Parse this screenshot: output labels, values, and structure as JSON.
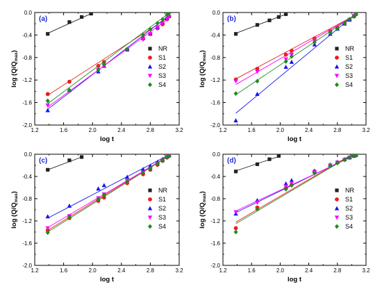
{
  "chart_data": [
    {
      "type": "scatter",
      "panel_label": "(a)",
      "xlabel": "log t",
      "ylabel": "log (Q/Q_max)",
      "ylabel_main": "log (Q/Q",
      "ylabel_sub": "max",
      "ylabel_close": ")",
      "xlim": [
        1.2,
        3.2
      ],
      "ylim": [
        -2.0,
        0.0
      ],
      "xticks": [
        1.2,
        1.6,
        2.0,
        2.4,
        2.8,
        3.2
      ],
      "yticks": [
        0.0,
        -0.4,
        -0.8,
        -1.2,
        -1.6,
        -2.0
      ],
      "xtick_labels": [
        "1.2",
        "1.6",
        "2.0",
        "2.4",
        "2.8",
        "3.2"
      ],
      "ytick_labels": [
        "0.0",
        "-0.4",
        "-0.8",
        "-1.2",
        "-1.6",
        "-2.0"
      ],
      "legend_position": "right",
      "series": [
        {
          "name": "NR",
          "marker": "square",
          "color": "#222222",
          "x": [
            1.38,
            1.68,
            1.85,
            1.98
          ],
          "y": [
            -0.38,
            -0.17,
            -0.08,
            -0.02
          ],
          "fit": [
            [
              1.38,
              -0.37
            ],
            [
              1.98,
              -0.02
            ]
          ]
        },
        {
          "name": "S1",
          "marker": "circle",
          "color": "#ee1c1c",
          "x": [
            1.38,
            1.68,
            2.08,
            2.16,
            2.48,
            2.7,
            2.8,
            2.9,
            2.97,
            3.03,
            3.06
          ],
          "y": [
            -1.45,
            -1.23,
            -0.95,
            -0.88,
            -0.66,
            -0.46,
            -0.38,
            -0.28,
            -0.21,
            -0.12,
            -0.07
          ],
          "fit": [
            [
              1.38,
              -1.47
            ],
            [
              3.06,
              -0.08
            ]
          ]
        },
        {
          "name": "S2",
          "marker": "triangle-up",
          "color": "#1414f0",
          "x": [
            1.38,
            1.68,
            2.08,
            2.16,
            2.48,
            2.7,
            2.8,
            2.9,
            2.97,
            3.03,
            3.06
          ],
          "y": [
            -1.74,
            -1.38,
            -1.05,
            -0.95,
            -0.66,
            -0.46,
            -0.38,
            -0.26,
            -0.17,
            -0.1,
            -0.06
          ],
          "fit": [
            [
              1.38,
              -1.72
            ],
            [
              3.06,
              -0.05
            ]
          ]
        },
        {
          "name": "S3",
          "marker": "triangle-down",
          "color": "#ff00ff",
          "x": [
            1.38,
            1.68,
            2.08,
            2.16,
            2.48,
            2.7,
            2.8,
            2.9,
            2.97,
            3.03,
            3.06
          ],
          "y": [
            -1.65,
            -1.4,
            -1.02,
            -0.95,
            -0.66,
            -0.48,
            -0.38,
            -0.27,
            -0.19,
            -0.11,
            -0.07
          ],
          "fit": [
            [
              1.38,
              -1.68
            ],
            [
              3.06,
              -0.1
            ]
          ]
        },
        {
          "name": "S4",
          "marker": "diamond",
          "color": "#1e8a1e",
          "x": [
            1.38,
            1.68,
            2.08,
            2.16,
            2.48,
            2.7,
            2.8,
            2.9,
            2.97,
            3.03,
            3.06
          ],
          "y": [
            -1.57,
            -1.38,
            -1.02,
            -0.92,
            -0.65,
            -0.4,
            -0.3,
            -0.19,
            -0.12,
            -0.04,
            -0.01
          ],
          "fit": [
            [
              1.38,
              -1.62
            ],
            [
              3.06,
              -0.01
            ]
          ]
        }
      ]
    },
    {
      "type": "scatter",
      "panel_label": "(b)",
      "xlabel": "log t",
      "ylabel": "log (Q/Q_max)",
      "ylabel_main": "log (Q/Q",
      "ylabel_sub": "max",
      "ylabel_close": ")",
      "xlim": [
        1.2,
        3.2
      ],
      "ylim": [
        -2.0,
        0.0
      ],
      "xticks": [
        1.2,
        1.6,
        2.0,
        2.4,
        2.8,
        3.2
      ],
      "yticks": [
        0.0,
        -0.4,
        -0.8,
        -1.2,
        -1.6,
        -2.0
      ],
      "xtick_labels": [
        "1.2",
        "1.6",
        "2.0",
        "2.4",
        "2.8",
        "3.2"
      ],
      "ytick_labels": [
        "0.0",
        "-0.4",
        "-0.8",
        "-1.2",
        "-1.6",
        "-2.0"
      ],
      "legend_position": "right",
      "series": [
        {
          "name": "NR",
          "marker": "square",
          "color": "#222222",
          "x": [
            1.38,
            1.68,
            1.85,
            1.98,
            2.08
          ],
          "y": [
            -0.38,
            -0.22,
            -0.14,
            -0.08,
            -0.03
          ],
          "fit": [
            [
              1.38,
              -0.37
            ],
            [
              2.08,
              -0.03
            ]
          ]
        },
        {
          "name": "S1",
          "marker": "circle",
          "color": "#ee1c1c",
          "x": [
            1.38,
            1.68,
            2.08,
            2.16,
            2.48,
            2.7,
            2.8,
            2.9,
            2.97,
            3.03,
            3.06
          ],
          "y": [
            -1.19,
            -1.0,
            -0.75,
            -0.68,
            -0.46,
            -0.33,
            -0.27,
            -0.19,
            -0.13,
            -0.07,
            -0.03
          ],
          "fit": [
            [
              1.38,
              -1.18
            ],
            [
              3.06,
              -0.04
            ]
          ]
        },
        {
          "name": "S2",
          "marker": "triangle-up",
          "color": "#1414f0",
          "x": [
            1.38,
            1.68,
            2.08,
            2.16,
            2.48,
            2.7,
            2.8,
            2.9,
            2.97,
            3.03,
            3.06
          ],
          "y": [
            -1.92,
            -1.45,
            -0.97,
            -0.88,
            -0.57,
            -0.38,
            -0.29,
            -0.2,
            -0.13,
            -0.06,
            -0.02
          ],
          "fit": [
            [
              1.38,
              -1.79
            ],
            [
              3.06,
              -0.02
            ]
          ]
        },
        {
          "name": "S3",
          "marker": "triangle-down",
          "color": "#ff00ff",
          "x": [
            1.38,
            1.68,
            2.08,
            2.16,
            2.48,
            2.7,
            2.8,
            2.9,
            2.97,
            3.03,
            3.06
          ],
          "y": [
            -1.22,
            -1.05,
            -0.83,
            -0.75,
            -0.51,
            -0.36,
            -0.29,
            -0.2,
            -0.13,
            -0.06,
            -0.03
          ],
          "fit": [
            [
              1.38,
              -1.28
            ],
            [
              3.06,
              -0.04
            ]
          ]
        },
        {
          "name": "S4",
          "marker": "diamond",
          "color": "#1e8a1e",
          "x": [
            1.38,
            1.68,
            2.08,
            2.16,
            2.48,
            2.7,
            2.8,
            2.9,
            2.97,
            3.03,
            3.06
          ],
          "y": [
            -1.44,
            -1.22,
            -0.87,
            -0.78,
            -0.53,
            -0.36,
            -0.29,
            -0.19,
            -0.12,
            -0.06,
            -0.03
          ],
          "fit": [
            [
              1.38,
              -1.46
            ],
            [
              3.06,
              -0.03
            ]
          ]
        }
      ]
    },
    {
      "type": "scatter",
      "panel_label": "(c)",
      "xlabel": "log t",
      "ylabel": "log (Q/Q_max)",
      "ylabel_main": "log (Q/Q",
      "ylabel_sub": "max",
      "ylabel_close": ")",
      "xlim": [
        1.2,
        3.2
      ],
      "ylim": [
        -2.0,
        0.0
      ],
      "xticks": [
        1.2,
        1.6,
        2.0,
        2.4,
        2.8,
        3.2
      ],
      "yticks": [
        0.0,
        -0.4,
        -0.8,
        -1.2,
        -1.6,
        -2.0
      ],
      "xtick_labels": [
        "1.2",
        "1.6",
        "2.0",
        "2.4",
        "2.8",
        "3.2"
      ],
      "ytick_labels": [
        "0.0",
        "-0.4",
        "-0.8",
        "-1.2",
        "-1.6",
        "-2.0"
      ],
      "legend_position": "right",
      "series": [
        {
          "name": "NR",
          "marker": "square",
          "color": "#222222",
          "x": [
            1.38,
            1.68,
            1.85
          ],
          "y": [
            -0.28,
            -0.11,
            -0.05
          ],
          "fit": [
            [
              1.38,
              -0.28
            ],
            [
              1.85,
              -0.05
            ]
          ]
        },
        {
          "name": "S1",
          "marker": "circle",
          "color": "#ee1c1c",
          "x": [
            1.38,
            1.68,
            2.08,
            2.16,
            2.48,
            2.7,
            2.8,
            2.9,
            2.97,
            3.03,
            3.06
          ],
          "y": [
            -1.37,
            -1.15,
            -0.84,
            -0.78,
            -0.52,
            -0.36,
            -0.28,
            -0.19,
            -0.12,
            -0.06,
            -0.03
          ],
          "fit": [
            [
              1.38,
              -1.37
            ],
            [
              3.06,
              -0.02
            ]
          ]
        },
        {
          "name": "S2",
          "marker": "triangle-up",
          "color": "#1414f0",
          "x": [
            1.38,
            1.68,
            2.08,
            2.16,
            2.48,
            2.7,
            2.8,
            2.9,
            2.97,
            3.03,
            3.06
          ],
          "y": [
            -1.12,
            -0.93,
            -0.62,
            -0.56,
            -0.41,
            -0.27,
            -0.21,
            -0.14,
            -0.09,
            -0.04,
            -0.02
          ],
          "fit": [
            [
              1.38,
              -1.15
            ],
            [
              3.06,
              -0.01
            ]
          ]
        },
        {
          "name": "S3",
          "marker": "triangle-down",
          "color": "#ff00ff",
          "x": [
            1.38,
            1.68,
            2.08,
            2.16,
            2.48,
            2.7,
            2.8,
            2.9,
            2.97,
            3.03,
            3.06
          ],
          "y": [
            -1.33,
            -1.11,
            -0.79,
            -0.72,
            -0.48,
            -0.33,
            -0.26,
            -0.17,
            -0.11,
            -0.05,
            -0.03
          ],
          "fit": [
            [
              1.38,
              -1.32
            ],
            [
              3.06,
              -0.03
            ]
          ]
        },
        {
          "name": "S4",
          "marker": "diamond",
          "color": "#1e8a1e",
          "x": [
            1.38,
            1.68,
            2.08,
            2.16,
            2.48,
            2.7,
            2.8,
            2.9,
            2.97,
            3.03,
            3.06
          ],
          "y": [
            -1.41,
            -1.13,
            -0.81,
            -0.73,
            -0.49,
            -0.33,
            -0.26,
            -0.17,
            -0.11,
            -0.05,
            -0.03
          ],
          "fit": [
            [
              1.38,
              -1.4
            ],
            [
              3.06,
              -0.03
            ]
          ]
        }
      ]
    },
    {
      "type": "scatter",
      "panel_label": "(d)",
      "xlabel": "log t",
      "ylabel": "log (Q/Q_max)",
      "ylabel_main": "log (Q/Q",
      "ylabel_sub": "max",
      "ylabel_close": ")",
      "xlim": [
        1.2,
        3.2
      ],
      "ylim": [
        -2.0,
        0.0
      ],
      "xticks": [
        1.2,
        1.6,
        2.0,
        2.4,
        2.8,
        3.2
      ],
      "yticks": [
        0.0,
        -0.4,
        -0.8,
        -1.2,
        -1.6,
        -2.0
      ],
      "xtick_labels": [
        "1.2",
        "1.6",
        "2.0",
        "2.4",
        "2.8",
        "3.2"
      ],
      "ytick_labels": [
        "0.0",
        "-0.4",
        "-0.8",
        "-1.2",
        "-1.6",
        "-2.0"
      ],
      "legend_position": "right",
      "series": [
        {
          "name": "NR",
          "marker": "square",
          "color": "#222222",
          "x": [
            1.38,
            1.68,
            1.85,
            1.98
          ],
          "y": [
            -0.31,
            -0.18,
            -0.09,
            -0.03
          ],
          "fit": [
            [
              1.38,
              -0.3
            ],
            [
              1.98,
              -0.04
            ]
          ]
        },
        {
          "name": "S1",
          "marker": "circle",
          "color": "#ee1c1c",
          "x": [
            1.38,
            1.68,
            2.08,
            2.16,
            2.48,
            2.7,
            2.8,
            2.9,
            2.97,
            3.03,
            3.06
          ],
          "y": [
            -1.33,
            -0.96,
            -0.61,
            -0.55,
            -0.31,
            -0.2,
            -0.15,
            -0.1,
            -0.06,
            -0.03,
            -0.02
          ],
          "fit": [
            [
              1.38,
              -1.22
            ],
            [
              3.06,
              0.04
            ]
          ]
        },
        {
          "name": "S2",
          "marker": "triangle-up",
          "color": "#1414f0",
          "x": [
            1.38,
            1.68,
            2.08,
            2.16,
            2.48,
            2.7,
            2.8,
            2.9,
            2.97,
            3.03,
            3.06
          ],
          "y": [
            -1.07,
            -0.83,
            -0.53,
            -0.47,
            -0.3,
            -0.19,
            -0.14,
            -0.09,
            -0.06,
            -0.03,
            -0.01
          ],
          "fit": [
            [
              1.38,
              -1.05
            ],
            [
              3.06,
              0.0
            ]
          ]
        },
        {
          "name": "S3",
          "marker": "triangle-down",
          "color": "#ff00ff",
          "x": [
            1.38,
            1.68,
            2.08,
            2.16,
            2.48,
            2.7,
            2.8,
            2.9,
            2.97,
            3.03,
            3.06
          ],
          "y": [
            -1.04,
            -0.87,
            -0.58,
            -0.52,
            -0.32,
            -0.2,
            -0.15,
            -0.1,
            -0.06,
            -0.03,
            -0.02
          ],
          "fit": [
            [
              1.38,
              -1.02
            ],
            [
              3.06,
              -0.01
            ]
          ]
        },
        {
          "name": "S4",
          "marker": "diamond",
          "color": "#1e8a1e",
          "x": [
            1.38,
            1.68,
            2.08,
            2.16,
            2.48,
            2.7,
            2.8,
            2.9,
            2.97,
            3.03,
            3.06
          ],
          "y": [
            -1.4,
            -0.99,
            -0.63,
            -0.56,
            -0.34,
            -0.21,
            -0.16,
            -0.1,
            -0.06,
            -0.03,
            -0.02
          ],
          "fit": [
            [
              1.38,
              -1.25
            ],
            [
              3.06,
              0.03
            ]
          ]
        }
      ]
    }
  ]
}
